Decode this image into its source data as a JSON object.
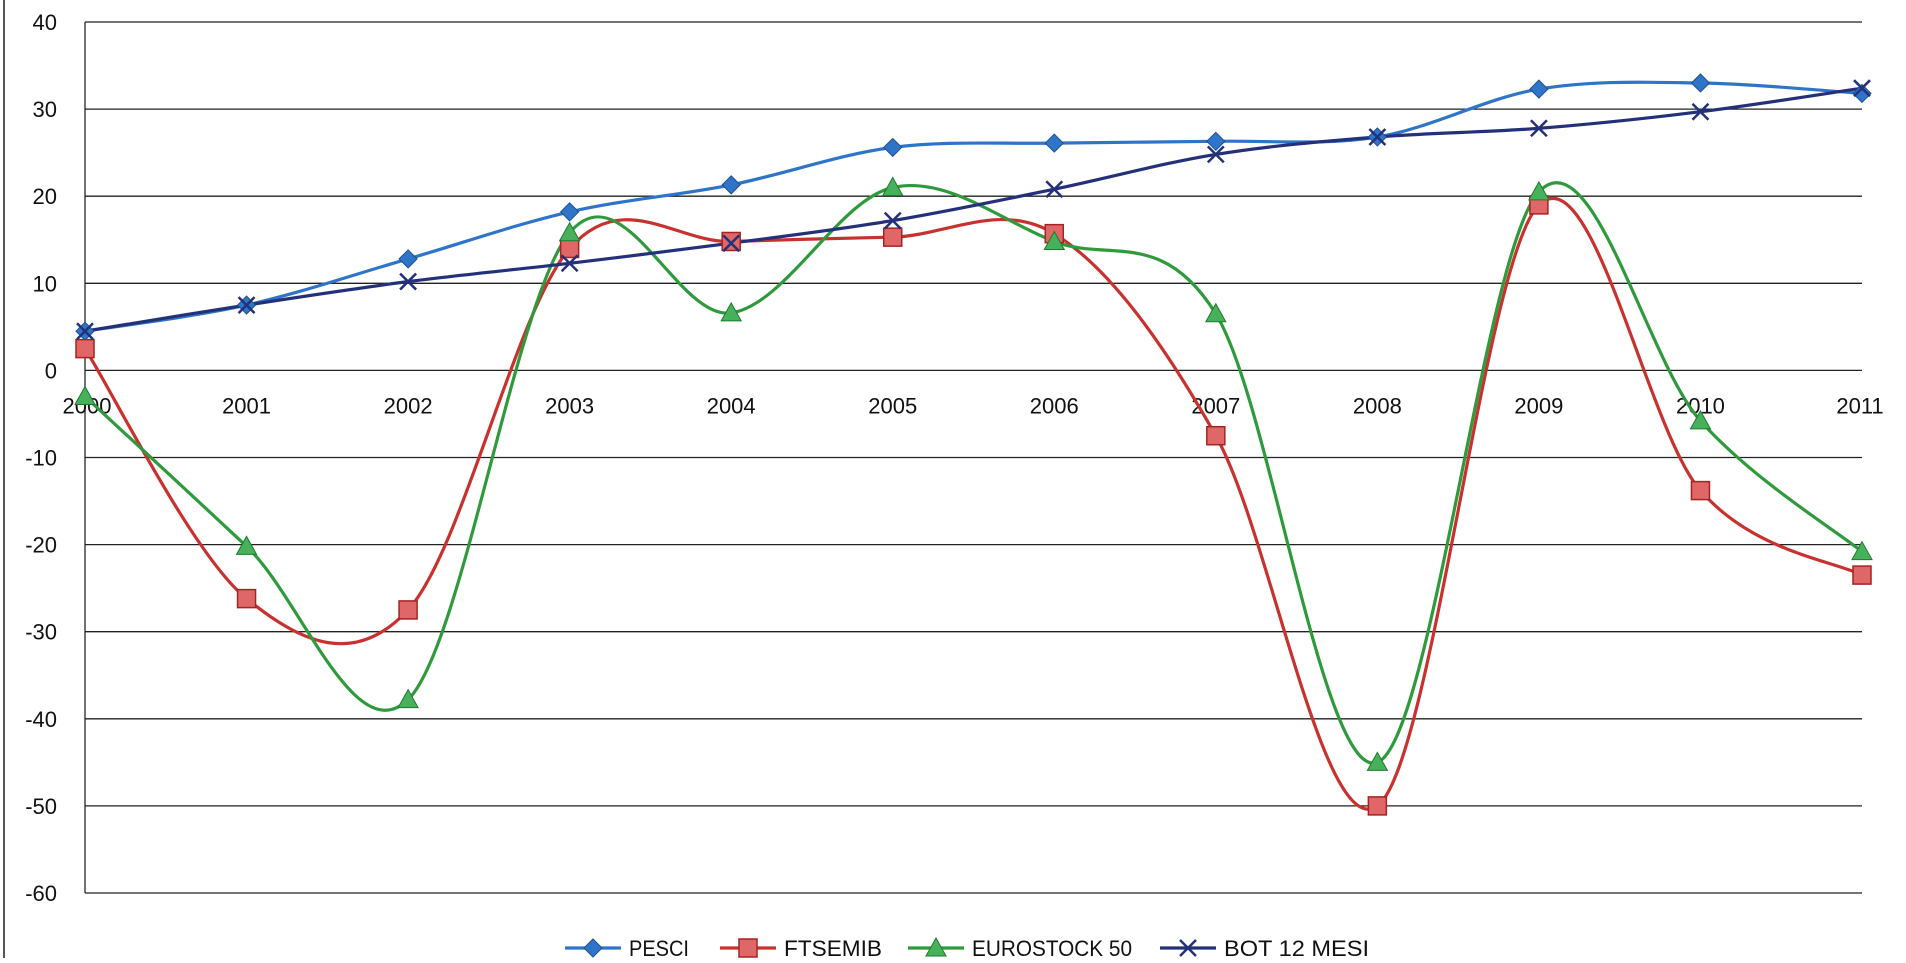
{
  "chart_data": {
    "type": "line",
    "title": "",
    "xlabel": "",
    "ylabel": "",
    "categories": [
      "2000",
      "2001",
      "2002",
      "2003",
      "2004",
      "2005",
      "2006",
      "2007",
      "2008",
      "2009",
      "2010",
      "2011"
    ],
    "ylim": [
      -60,
      40
    ],
    "yticks": [
      40,
      30,
      20,
      10,
      0,
      -10,
      -20,
      -30,
      -40,
      -50,
      -60
    ],
    "grid": true,
    "legend_position": "bottom",
    "series": [
      {
        "name": "PESCI",
        "color": "#2E75C9",
        "marker": "diamond",
        "values": [
          4.5,
          7.5,
          12.8,
          18.2,
          21.3,
          25.6,
          26.1,
          26.3,
          26.8,
          32.3,
          33.0,
          31.8
        ]
      },
      {
        "name": "FTSEMIB",
        "color": "#C8312E",
        "marker": "square",
        "values": [
          2.5,
          -26.2,
          -27.5,
          14.0,
          14.8,
          15.3,
          15.7,
          -7.5,
          -50.0,
          19.0,
          -13.8,
          -23.5
        ]
      },
      {
        "name": "EUROSTOCK 50",
        "color": "#2E9A3C",
        "marker": "triangle",
        "values": [
          -3.0,
          -20.2,
          -37.8,
          15.8,
          6.6,
          21.0,
          14.8,
          6.5,
          -45.0,
          20.5,
          -5.8,
          -20.8
        ]
      },
      {
        "name": "BOT 12 MESI",
        "color": "#24317A",
        "marker": "x",
        "values": [
          4.5,
          7.5,
          10.2,
          12.3,
          14.6,
          17.2,
          20.8,
          24.8,
          26.8,
          27.8,
          29.7,
          32.4
        ]
      }
    ]
  }
}
